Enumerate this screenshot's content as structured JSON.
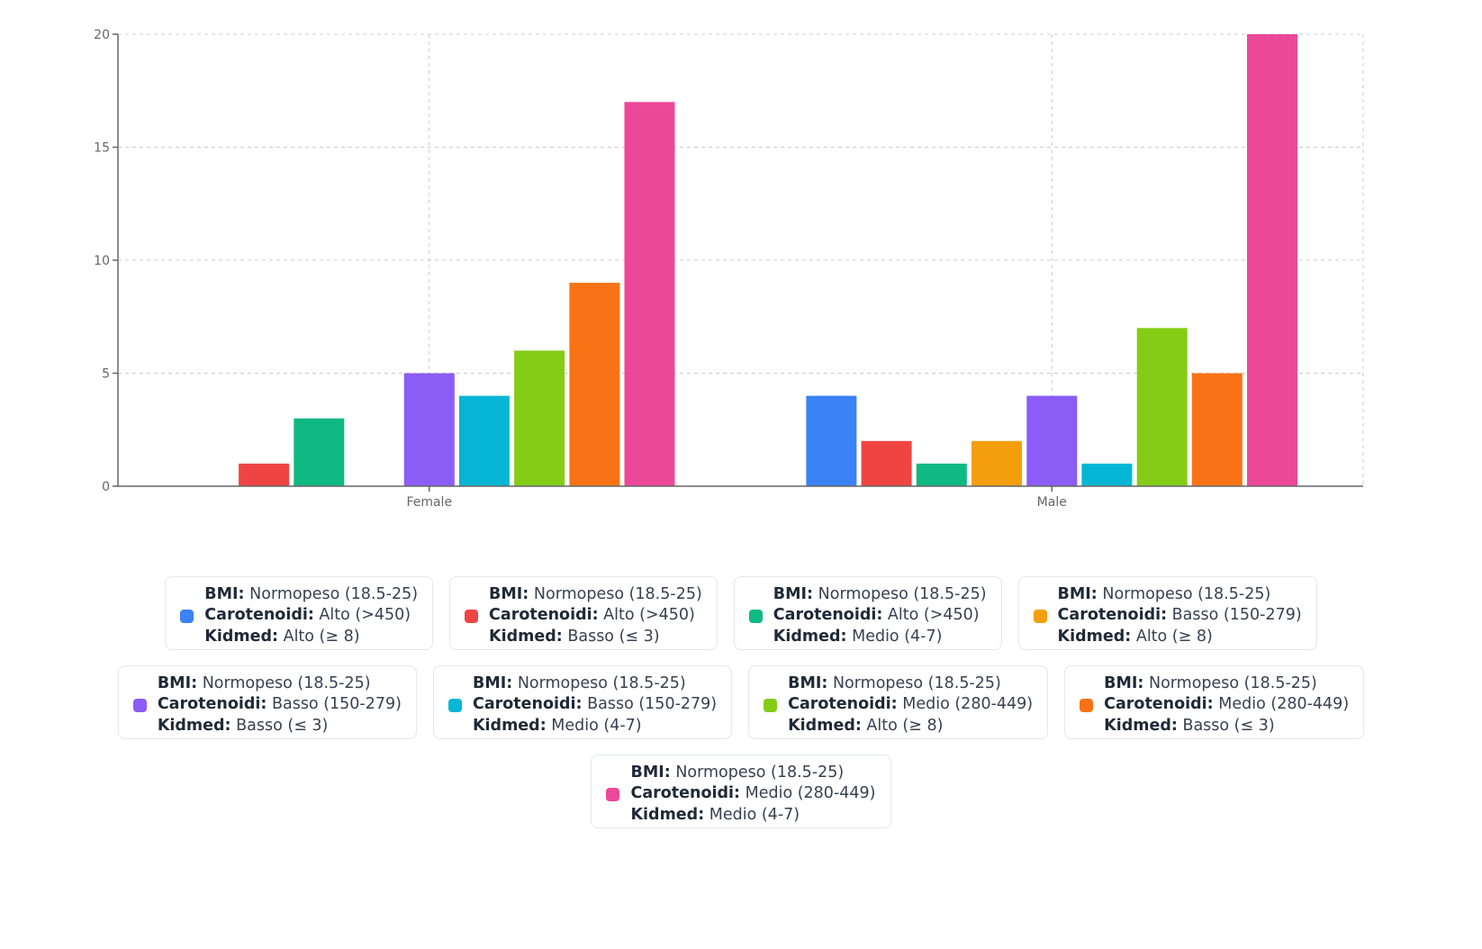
{
  "chart_data": {
    "type": "bar",
    "title": "",
    "xlabel": "",
    "ylabel": "",
    "ylim": [
      0,
      20
    ],
    "yticks": [
      "0",
      "5",
      "10",
      "15",
      "20"
    ],
    "grid": true,
    "legend_position": "bottom",
    "categories": [
      "Female",
      "Male"
    ],
    "series": [
      {
        "name": "BMI: Normopeso (18.5-25) Carotenoidi: Alto (>450) Kidmed: Alto (≥ 8)",
        "color": "#3b82f6",
        "values": [
          0,
          4
        ],
        "bmi": "Normopeso (18.5-25)",
        "carotenoidi": "Alto (>450)",
        "kidmed": "Alto (≥ 8)"
      },
      {
        "name": "BMI: Normopeso (18.5-25) Carotenoidi: Alto (>450) Kidmed: Basso (≤ 3)",
        "color": "#ef4444",
        "values": [
          1,
          2
        ],
        "bmi": "Normopeso (18.5-25)",
        "carotenoidi": "Alto (>450)",
        "kidmed": "Basso (≤ 3)"
      },
      {
        "name": "BMI: Normopeso (18.5-25) Carotenoidi: Alto (>450) Kidmed: Medio (4-7)",
        "color": "#10b981",
        "values": [
          3,
          1
        ],
        "bmi": "Normopeso (18.5-25)",
        "carotenoidi": "Alto (>450)",
        "kidmed": "Medio (4-7)"
      },
      {
        "name": "BMI: Normopeso (18.5-25) Carotenoidi: Basso (150-279) Kidmed: Alto (≥ 8)",
        "color": "#f59e0b",
        "values": [
          0,
          2
        ],
        "bmi": "Normopeso (18.5-25)",
        "carotenoidi": "Basso (150-279)",
        "kidmed": "Alto (≥ 8)"
      },
      {
        "name": "BMI: Normopeso (18.5-25) Carotenoidi: Basso (150-279) Kidmed: Basso (≤ 3)",
        "color": "#8b5cf6",
        "values": [
          5,
          4
        ],
        "bmi": "Normopeso (18.5-25)",
        "carotenoidi": "Basso (150-279)",
        "kidmed": "Basso (≤ 3)"
      },
      {
        "name": "BMI: Normopeso (18.5-25) Carotenoidi: Basso (150-279) Kidmed: Medio (4-7)",
        "color": "#06b6d4",
        "values": [
          4,
          1
        ],
        "bmi": "Normopeso (18.5-25)",
        "carotenoidi": "Basso (150-279)",
        "kidmed": "Medio (4-7)"
      },
      {
        "name": "BMI: Normopeso (18.5-25) Carotenoidi: Medio (280-449) Kidmed: Alto (≥ 8)",
        "color": "#84cc16",
        "values": [
          6,
          7
        ],
        "bmi": "Normopeso (18.5-25)",
        "carotenoidi": "Medio (280-449)",
        "kidmed": "Alto (≥ 8)"
      },
      {
        "name": "BMI: Normopeso (18.5-25) Carotenoidi: Medio (280-449) Kidmed: Basso (≤ 3)",
        "color": "#f97316",
        "values": [
          9,
          5
        ],
        "bmi": "Normopeso (18.5-25)",
        "carotenoidi": "Medio (280-449)",
        "kidmed": "Basso (≤ 3)"
      },
      {
        "name": "BMI: Normopeso (18.5-25) Carotenoidi: Medio (280-449) Kidmed: Medio (4-7)",
        "color": "#ec4899",
        "values": [
          17,
          20
        ],
        "bmi": "Normopeso (18.5-25)",
        "carotenoidi": "Medio (280-449)",
        "kidmed": "Medio (4-7)"
      }
    ]
  },
  "legend": {
    "bmi_label": "BMI:",
    "carotenoidi_label": "Carotenoidi:",
    "kidmed_label": "Kidmed:"
  }
}
